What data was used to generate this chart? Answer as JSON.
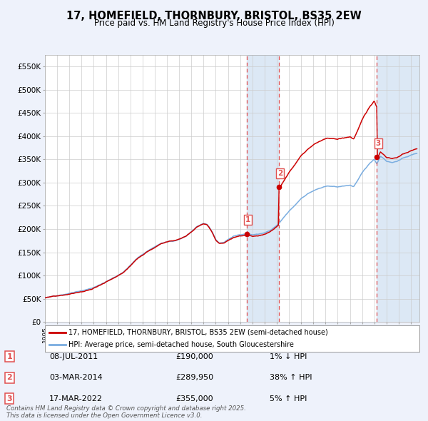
{
  "title": "17, HOMEFIELD, THORNBURY, BRISTOL, BS35 2EW",
  "subtitle": "Price paid vs. HM Land Registry's House Price Index (HPI)",
  "legend_entry1": "17, HOMEFIELD, THORNBURY, BRISTOL, BS35 2EW (semi-detached house)",
  "legend_entry2": "HPI: Average price, semi-detached house, South Gloucestershire",
  "footer": "Contains HM Land Registry data © Crown copyright and database right 2025.\nThis data is licensed under the Open Government Licence v3.0.",
  "transactions": [
    {
      "num": 1,
      "date": "08-JUL-2011",
      "price": 190000,
      "pct": "1%",
      "dir": "↓",
      "date_decimal": 2011.52
    },
    {
      "num": 2,
      "date": "03-MAR-2014",
      "price": 289950,
      "pct": "38%",
      "dir": "↑",
      "date_decimal": 2014.17
    },
    {
      "num": 3,
      "date": "17-MAR-2022",
      "price": 355000,
      "pct": "5%",
      "dir": "↑",
      "date_decimal": 2022.21
    }
  ],
  "ylim": [
    0,
    575000
  ],
  "yticks": [
    0,
    50000,
    100000,
    150000,
    200000,
    250000,
    300000,
    350000,
    400000,
    450000,
    500000,
    550000
  ],
  "xlim_start": 1995.0,
  "xlim_end": 2025.7,
  "background_color": "#eef2fb",
  "plot_bg": "#ffffff",
  "grid_color": "#cccccc",
  "red_line_color": "#cc0000",
  "blue_line_color": "#7aade0",
  "shade_color": "#dce8f5",
  "transaction_dot_color": "#cc0000",
  "dashed_line_color": "#e05050"
}
